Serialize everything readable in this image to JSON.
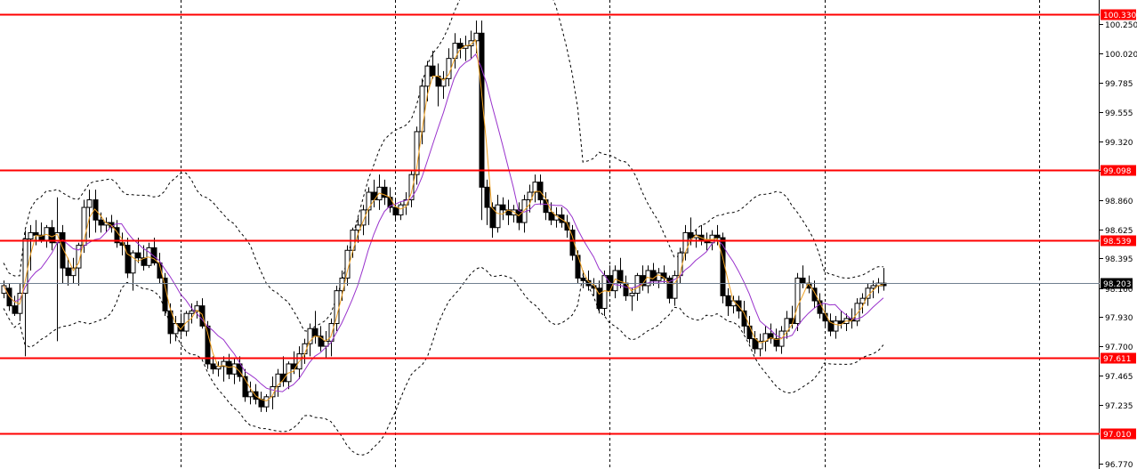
{
  "colors": {
    "background": "#ffffff",
    "level_line": "#ff0000",
    "level_flag": "#ff0000",
    "current_line": "#708090",
    "current_flag": "#000000",
    "candle_up": "#ffffff",
    "candle_down": "#000000",
    "candle_border": "#000000",
    "ma_fast": "#f0a020",
    "ma_slow": "#9932cc",
    "bands": "#000000",
    "separator": "#000000"
  },
  "chart_data": {
    "type": "candlestick",
    "title": "",
    "xlabel": "",
    "ylabel": "",
    "ylim": [
      96.77,
      100.33
    ],
    "price_axis_ticks": [
      "100.250",
      "100.020",
      "99.785",
      "99.555",
      "99.320",
      "99.090",
      "98.860",
      "98.625",
      "98.395",
      "98.160",
      "97.930",
      "97.700",
      "97.465",
      "97.235",
      "96.770"
    ],
    "horizontal_levels": [
      {
        "value": 100.33,
        "label": "100.330"
      },
      {
        "value": 99.098,
        "label": "99.098"
      },
      {
        "value": 98.539,
        "label": "98.539"
      },
      {
        "value": 97.611,
        "label": "97.611"
      },
      {
        "value": 97.01,
        "label": "97.010"
      }
    ],
    "current_price": {
      "value": 98.203,
      "label": "98.203"
    },
    "session_separators": [
      33,
      73,
      113,
      153,
      193
    ],
    "ohlc": [
      [
        98.12,
        98.22,
        98.08,
        98.18
      ],
      [
        98.16,
        98.2,
        97.98,
        98.02
      ],
      [
        98.02,
        98.1,
        97.94,
        97.96
      ],
      [
        97.96,
        98.2,
        97.9,
        98.12
      ],
      [
        98.12,
        98.62,
        97.62,
        98.55
      ],
      [
        98.55,
        98.66,
        98.3,
        98.6
      ],
      [
        98.6,
        98.7,
        98.5,
        98.58
      ],
      [
        98.58,
        98.68,
        98.52,
        98.54
      ],
      [
        98.54,
        98.66,
        98.48,
        98.64
      ],
      [
        98.64,
        98.7,
        98.46,
        98.52
      ],
      [
        98.52,
        98.88,
        97.74,
        98.6
      ],
      [
        98.6,
        98.66,
        98.2,
        98.32
      ],
      [
        98.32,
        98.4,
        98.18,
        98.26
      ],
      [
        98.26,
        98.4,
        98.2,
        98.32
      ],
      [
        98.32,
        98.52,
        98.18,
        98.5
      ],
      [
        98.5,
        98.86,
        98.44,
        98.8
      ],
      [
        98.8,
        98.94,
        98.56,
        98.86
      ],
      [
        98.86,
        98.94,
        98.6,
        98.7
      ],
      [
        98.7,
        98.76,
        98.6,
        98.66
      ],
      [
        98.66,
        98.72,
        98.6,
        98.68
      ],
      [
        98.68,
        98.74,
        98.6,
        98.64
      ],
      [
        98.64,
        98.7,
        98.48,
        98.52
      ],
      [
        98.52,
        98.6,
        98.42,
        98.5
      ],
      [
        98.5,
        98.56,
        98.24,
        98.28
      ],
      [
        98.28,
        98.46,
        98.14,
        98.44
      ],
      [
        98.44,
        98.56,
        98.36,
        98.4
      ],
      [
        98.4,
        98.5,
        98.3,
        98.34
      ],
      [
        98.34,
        98.52,
        98.32,
        98.48
      ],
      [
        98.48,
        98.56,
        98.34,
        98.36
      ],
      [
        98.36,
        98.44,
        98.2,
        98.24
      ],
      [
        98.24,
        98.28,
        97.94,
        97.98
      ],
      [
        97.98,
        98.04,
        97.72,
        97.8
      ],
      [
        97.8,
        97.94,
        97.74,
        97.88
      ],
      [
        97.88,
        97.96,
        97.78,
        97.82
      ],
      [
        97.82,
        97.98,
        97.78,
        97.96
      ],
      [
        97.96,
        98.04,
        97.88,
        97.98
      ],
      [
        97.98,
        98.06,
        97.92,
        98.02
      ],
      [
        98.02,
        98.08,
        97.84,
        97.86
      ],
      [
        97.86,
        97.9,
        97.52,
        97.56
      ],
      [
        97.56,
        97.62,
        97.48,
        97.52
      ],
      [
        97.52,
        97.58,
        97.46,
        97.54
      ],
      [
        97.54,
        97.62,
        97.42,
        97.58
      ],
      [
        97.58,
        97.64,
        97.44,
        97.48
      ],
      [
        97.48,
        97.6,
        97.4,
        97.56
      ],
      [
        97.56,
        97.62,
        97.42,
        97.46
      ],
      [
        97.46,
        97.52,
        97.26,
        97.3
      ],
      [
        97.3,
        97.42,
        97.24,
        97.34
      ],
      [
        97.34,
        97.4,
        97.24,
        97.28
      ],
      [
        97.28,
        97.34,
        97.18,
        97.22
      ],
      [
        97.22,
        97.32,
        97.18,
        97.3
      ],
      [
        97.3,
        97.46,
        97.2,
        97.38
      ],
      [
        97.38,
        97.52,
        97.3,
        97.48
      ],
      [
        97.48,
        97.62,
        97.38,
        97.42
      ],
      [
        97.42,
        97.58,
        97.36,
        97.56
      ],
      [
        97.56,
        97.66,
        97.48,
        97.52
      ],
      [
        97.52,
        97.7,
        97.44,
        97.64
      ],
      [
        97.64,
        97.76,
        97.56,
        97.72
      ],
      [
        97.72,
        97.88,
        97.62,
        97.84
      ],
      [
        97.84,
        97.98,
        97.72,
        97.78
      ],
      [
        97.78,
        97.86,
        97.66,
        97.7
      ],
      [
        97.7,
        97.82,
        97.6,
        97.74
      ],
      [
        97.74,
        97.92,
        97.62,
        97.88
      ],
      [
        97.88,
        98.18,
        97.82,
        98.14
      ],
      [
        98.14,
        98.3,
        98.06,
        98.24
      ],
      [
        98.24,
        98.5,
        98.18,
        98.46
      ],
      [
        98.46,
        98.64,
        98.4,
        98.62
      ],
      [
        98.62,
        98.72,
        98.52,
        98.66
      ],
      [
        98.66,
        98.82,
        98.58,
        98.78
      ],
      [
        98.78,
        98.96,
        98.66,
        98.92
      ],
      [
        98.92,
        99.02,
        98.8,
        98.86
      ],
      [
        98.86,
        99.06,
        98.78,
        98.96
      ],
      [
        98.96,
        99.02,
        98.82,
        98.88
      ],
      [
        98.88,
        98.96,
        98.76,
        98.8
      ],
      [
        98.8,
        98.86,
        98.7,
        98.74
      ],
      [
        98.74,
        98.84,
        98.7,
        98.82
      ],
      [
        98.82,
        98.92,
        98.74,
        98.86
      ],
      [
        98.86,
        99.1,
        98.8,
        99.06
      ],
      [
        99.06,
        99.44,
        98.98,
        99.4
      ],
      [
        99.4,
        99.82,
        99.3,
        99.76
      ],
      [
        99.76,
        99.96,
        99.64,
        99.92
      ],
      [
        99.92,
        100.04,
        99.82,
        99.84
      ],
      [
        99.84,
        99.94,
        99.6,
        99.76
      ],
      [
        99.76,
        99.88,
        99.66,
        99.82
      ],
      [
        99.82,
        100.06,
        99.76,
        99.98
      ],
      [
        99.98,
        100.18,
        99.9,
        100.1
      ],
      [
        100.1,
        100.14,
        99.98,
        100.06
      ],
      [
        100.06,
        100.16,
        99.96,
        100.08
      ],
      [
        100.08,
        100.2,
        99.98,
        100.12
      ],
      [
        100.12,
        100.28,
        100.02,
        100.18
      ],
      [
        100.18,
        100.28,
        98.7,
        98.96
      ],
      [
        98.96,
        99.02,
        98.66,
        98.8
      ],
      [
        98.8,
        98.84,
        98.56,
        98.64
      ],
      [
        98.64,
        98.9,
        98.6,
        98.82
      ],
      [
        98.82,
        98.88,
        98.7,
        98.78
      ],
      [
        98.78,
        98.86,
        98.66,
        98.74
      ],
      [
        98.74,
        98.82,
        98.68,
        98.78
      ],
      [
        98.78,
        98.84,
        98.62,
        98.68
      ],
      [
        98.68,
        98.9,
        98.6,
        98.86
      ],
      [
        98.86,
        98.98,
        98.76,
        98.92
      ],
      [
        98.92,
        99.06,
        98.84,
        99.0
      ],
      [
        99.0,
        99.06,
        98.82,
        98.86
      ],
      [
        98.86,
        98.92,
        98.7,
        98.76
      ],
      [
        98.76,
        98.84,
        98.66,
        98.7
      ],
      [
        98.7,
        98.8,
        98.64,
        98.74
      ],
      [
        98.74,
        98.8,
        98.64,
        98.68
      ],
      [
        98.68,
        98.74,
        98.56,
        98.62
      ],
      [
        98.62,
        98.66,
        98.38,
        98.42
      ],
      [
        98.42,
        98.46,
        98.2,
        98.24
      ],
      [
        98.24,
        98.3,
        98.16,
        98.22
      ],
      [
        98.22,
        98.3,
        98.14,
        98.18
      ],
      [
        98.18,
        98.24,
        98.1,
        98.16
      ],
      [
        98.16,
        98.22,
        97.96,
        98.0
      ],
      [
        98.0,
        98.3,
        97.94,
        98.26
      ],
      [
        98.26,
        98.34,
        98.1,
        98.14
      ],
      [
        98.14,
        98.34,
        98.08,
        98.3
      ],
      [
        98.3,
        98.4,
        98.16,
        98.2
      ],
      [
        98.2,
        98.26,
        98.06,
        98.1
      ],
      [
        98.1,
        98.16,
        97.98,
        98.12
      ],
      [
        98.12,
        98.28,
        98.06,
        98.26
      ],
      [
        98.26,
        98.34,
        98.14,
        98.18
      ],
      [
        98.18,
        98.34,
        98.12,
        98.3
      ],
      [
        98.3,
        98.36,
        98.18,
        98.22
      ],
      [
        98.22,
        98.32,
        98.16,
        98.28
      ],
      [
        98.28,
        98.34,
        98.2,
        98.24
      ],
      [
        98.24,
        98.26,
        98.04,
        98.08
      ],
      [
        98.08,
        98.3,
        98.02,
        98.26
      ],
      [
        98.26,
        98.48,
        98.2,
        98.44
      ],
      [
        98.44,
        98.66,
        98.38,
        98.6
      ],
      [
        98.6,
        98.72,
        98.5,
        98.56
      ],
      [
        98.56,
        98.62,
        98.48,
        98.58
      ],
      [
        98.58,
        98.66,
        98.5,
        98.54
      ],
      [
        98.54,
        98.6,
        98.46,
        98.52
      ],
      [
        98.52,
        98.62,
        98.46,
        98.58
      ],
      [
        98.58,
        98.66,
        98.5,
        98.56
      ],
      [
        98.56,
        98.6,
        98.04,
        98.1
      ],
      [
        98.1,
        98.16,
        97.94,
        98.02
      ],
      [
        98.02,
        98.1,
        97.96,
        98.06
      ],
      [
        98.06,
        98.1,
        97.92,
        97.98
      ],
      [
        97.98,
        98.06,
        97.8,
        97.86
      ],
      [
        97.86,
        97.94,
        97.72,
        97.76
      ],
      [
        97.76,
        97.82,
        97.64,
        97.68
      ],
      [
        97.68,
        97.8,
        97.62,
        97.74
      ],
      [
        97.74,
        97.86,
        97.66,
        97.8
      ],
      [
        97.8,
        97.88,
        97.72,
        97.76
      ],
      [
        97.76,
        97.84,
        97.66,
        97.7
      ],
      [
        97.7,
        97.86,
        97.64,
        97.82
      ],
      [
        97.82,
        97.98,
        97.76,
        97.92
      ],
      [
        97.92,
        98.02,
        97.84,
        97.88
      ],
      [
        97.88,
        98.28,
        97.82,
        98.24
      ],
      [
        98.24,
        98.34,
        98.16,
        98.2
      ],
      [
        98.2,
        98.26,
        98.12,
        98.16
      ],
      [
        98.16,
        98.22,
        98.0,
        98.06
      ],
      [
        98.06,
        98.12,
        97.92,
        97.96
      ],
      [
        97.96,
        98.04,
        97.86,
        97.9
      ],
      [
        97.9,
        97.96,
        97.78,
        97.82
      ],
      [
        97.82,
        97.94,
        97.76,
        97.9
      ],
      [
        97.9,
        97.98,
        97.84,
        97.88
      ],
      [
        97.88,
        97.96,
        97.82,
        97.92
      ],
      [
        97.92,
        98.0,
        97.84,
        97.9
      ],
      [
        97.9,
        98.08,
        97.86,
        98.04
      ],
      [
        98.04,
        98.12,
        97.96,
        98.08
      ],
      [
        98.08,
        98.2,
        98.02,
        98.16
      ],
      [
        98.16,
        98.22,
        98.08,
        98.18
      ],
      [
        98.18,
        98.24,
        98.12,
        98.2
      ],
      [
        98.2,
        98.32,
        98.14,
        98.18
      ]
    ]
  }
}
